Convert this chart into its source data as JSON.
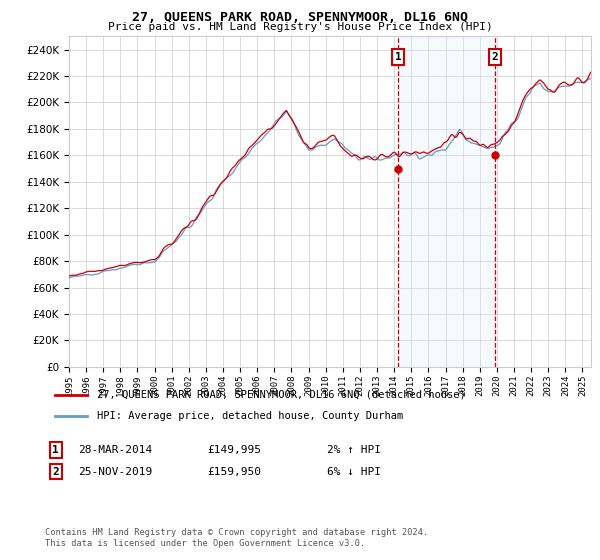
{
  "title": "27, QUEENS PARK ROAD, SPENNYMOOR, DL16 6NQ",
  "subtitle": "Price paid vs. HM Land Registry's House Price Index (HPI)",
  "yticks": [
    0,
    20000,
    40000,
    60000,
    80000,
    100000,
    120000,
    140000,
    160000,
    180000,
    200000,
    220000,
    240000
  ],
  "sale1": {
    "date": "28-MAR-2014",
    "price": 149995,
    "label": "1",
    "hpi_pct": "2% ↑ HPI",
    "x": 2014.24
  },
  "sale2": {
    "date": "25-NOV-2019",
    "price": 159950,
    "label": "2",
    "hpi_pct": "6% ↓ HPI",
    "x": 2019.9
  },
  "legend_line1": "27, QUEENS PARK ROAD, SPENNYMOOR, DL16 6NQ (detached house)",
  "legend_line2": "HPI: Average price, detached house, County Durham",
  "footer": "Contains HM Land Registry data © Crown copyright and database right 2024.\nThis data is licensed under the Open Government Licence v3.0.",
  "hpi_color": "#6699cc",
  "sold_color": "#cc0000",
  "shade_color": "#ddeeff",
  "background_color": "#ffffff",
  "grid_color": "#cccccc",
  "sale_marker_color": "#cc0000",
  "dashed_line_color": "#cc0000"
}
